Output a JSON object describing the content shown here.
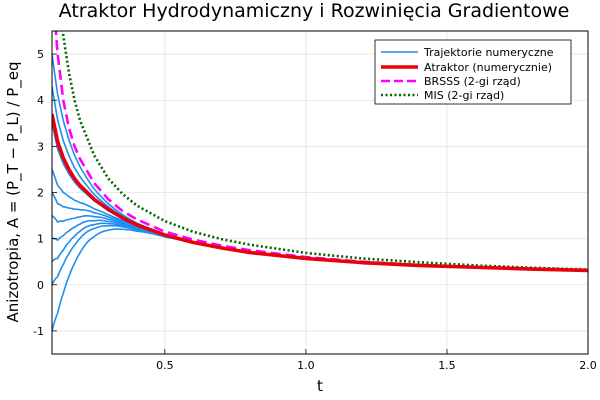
{
  "chart_data": {
    "type": "line",
    "title": "Atraktor Hydrodynamiczny i Rozwinięcia Gradientowe",
    "xlabel": "t",
    "ylabel": "Anizotropia, A = (P_T − P_L) / P_eq",
    "xlim": [
      0.1,
      2.0
    ],
    "ylim": [
      -1.5,
      5.5
    ],
    "xticks": [
      0.5,
      1.0,
      1.5,
      2.0
    ],
    "xtick_labels": [
      "0.5",
      "1.0",
      "1.5",
      "2.0"
    ],
    "yticks": [
      -1,
      0,
      1,
      2,
      3,
      4,
      5
    ],
    "ytick_labels": [
      "-1",
      "0",
      "1",
      "2",
      "3",
      "4",
      "5"
    ],
    "grid": true,
    "legend_position": "top-right",
    "legend": [
      {
        "label": "Trajektorie numeryczne",
        "color": "#1f8ff0",
        "style": "solid-thin"
      },
      {
        "label": "Atraktor (numerycznie)",
        "color": "#e8000b",
        "style": "solid-thick"
      },
      {
        "label": "BRSSS (2-gi rząd)",
        "color": "#ff00ff",
        "style": "dashed"
      },
      {
        "label": "MIS (2-gi rząd)",
        "color": "#006400",
        "style": "dotted"
      }
    ],
    "series": [
      {
        "name": "Trajektorie numeryczne",
        "kind": "trajectories",
        "color": "#1f8ff0",
        "initial_values": [
          5.0,
          4.3,
          3.5,
          2.5,
          2.0,
          1.5,
          1.0,
          0.5,
          0.0,
          -1.0
        ]
      },
      {
        "name": "Atraktor (numerycznie)",
        "color": "#e8000b",
        "x": [
          0.1,
          0.12,
          0.14,
          0.16,
          0.18,
          0.2,
          0.25,
          0.3,
          0.35,
          0.4,
          0.5,
          0.6,
          0.7,
          0.8,
          1.0,
          1.2,
          1.4,
          1.6,
          1.8,
          2.0
        ],
        "y": [
          3.7,
          3.1,
          2.75,
          2.5,
          2.3,
          2.15,
          1.85,
          1.63,
          1.45,
          1.3,
          1.08,
          0.92,
          0.8,
          0.7,
          0.57,
          0.48,
          0.42,
          0.38,
          0.34,
          0.31
        ]
      },
      {
        "name": "BRSSS (2-gi rząd)",
        "color": "#ff00ff",
        "x": [
          0.1,
          0.12,
          0.14,
          0.16,
          0.18,
          0.2,
          0.25,
          0.3,
          0.35,
          0.4,
          0.5,
          0.6,
          0.7,
          0.8,
          1.0,
          1.2,
          1.4,
          1.6,
          1.8,
          2.0
        ],
        "y": [
          6.6,
          5.0,
          4.0,
          3.4,
          3.0,
          2.72,
          2.2,
          1.85,
          1.6,
          1.42,
          1.15,
          0.98,
          0.85,
          0.75,
          0.6,
          0.5,
          0.43,
          0.38,
          0.34,
          0.31
        ]
      },
      {
        "name": "MIS (2-gi rząd)",
        "color": "#006400",
        "x": [
          0.12,
          0.14,
          0.16,
          0.18,
          0.2,
          0.25,
          0.3,
          0.35,
          0.4,
          0.5,
          0.6,
          0.7,
          0.8,
          1.0,
          1.2,
          1.4,
          1.6,
          1.8,
          2.0
        ],
        "y": [
          6.6,
          5.4,
          4.6,
          4.0,
          3.55,
          2.8,
          2.3,
          1.97,
          1.72,
          1.38,
          1.15,
          0.99,
          0.87,
          0.69,
          0.57,
          0.49,
          0.42,
          0.37,
          0.33
        ]
      }
    ]
  }
}
